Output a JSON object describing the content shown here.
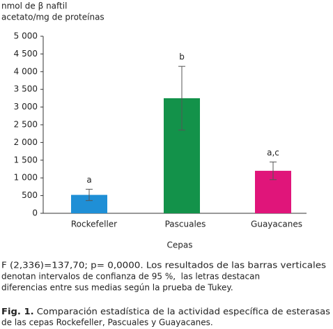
{
  "chart_data": {
    "type": "bar",
    "y_label": [
      "nmol de β naftil",
      "acetato/mg de proteínas"
    ],
    "x_label": "Cepas",
    "categories": [
      "Rockefeller",
      "Pascuales",
      "Guayacanes"
    ],
    "values": [
      520,
      3250,
      1200
    ],
    "errors": [
      160,
      900,
      250
    ],
    "annotations": [
      "a",
      "b",
      "a,c"
    ],
    "colors": [
      "#1f8fd6",
      "#13924a",
      "#e0157a"
    ],
    "ylim": [
      0,
      5000
    ],
    "yticks": [
      0,
      500,
      {
        "value": 1000,
        "label": "1 000"
      },
      {
        "value": 1500,
        "label": "1 500"
      },
      {
        "value": 2000,
        "label": "2 000"
      },
      {
        "value": 2500,
        "label": "2 500"
      },
      {
        "value": 3000,
        "label": "3 000"
      },
      {
        "value": 3500,
        "label": "3 500"
      },
      {
        "value": 4000,
        "label": "4 000"
      },
      {
        "value": 4500,
        "label": "4 500"
      },
      {
        "value": 5000,
        "label": "5 000"
      }
    ]
  },
  "note": [
    "F (2,336)=137,70; p= 0,0000. Los resultados de las barras verticales",
    "denotan intervalos de confianza de 95 %,  las letras destacan",
    "diferencias entre sus medias según la prueba de Tukey."
  ],
  "caption": {
    "label": "Fig. 1.",
    "lines": [
      " Comparación estadística de la actividad específica de esterasas",
      "de las cepas Rockefeller, Pascuales y Guayacanes."
    ]
  }
}
